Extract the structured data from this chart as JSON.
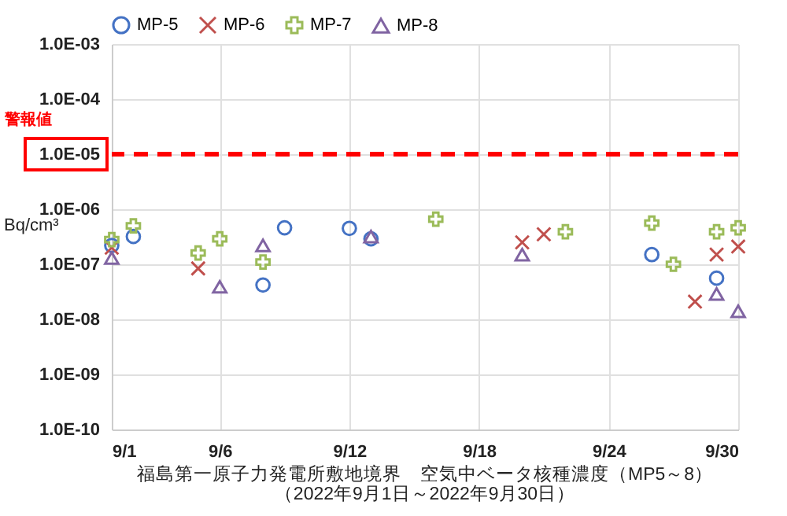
{
  "chart_data": {
    "type": "scatter",
    "title": "福島第一原子力発電所敷地境界　空気中ベータ核種濃度（MP5～8）",
    "subtitle": "（2022年9月1日～2022年9月30日）",
    "ylabel": "Bq/cm³",
    "log": "y",
    "grid": true,
    "legend": "top",
    "xlim": [
      "2022-09-01",
      "2022-09-30"
    ],
    "xticks": [
      {
        "value": "2022-09-01",
        "label": "9/1"
      },
      {
        "value": "2022-09-06",
        "label": "9/6"
      },
      {
        "value": "2022-09-12",
        "label": "9/12"
      },
      {
        "value": "2022-09-18",
        "label": "9/18"
      },
      {
        "value": "2022-09-24",
        "label": "9/24"
      },
      {
        "value": "2022-09-30",
        "label": "9/30"
      }
    ],
    "ylim": [
      1e-10,
      0.001
    ],
    "yticks": [
      {
        "value": 1e-10,
        "label": "1.0E-10"
      },
      {
        "value": 1e-09,
        "label": "1.0E-09"
      },
      {
        "value": 1e-08,
        "label": "1.0E-08"
      },
      {
        "value": 1e-07,
        "label": "1.0E-07"
      },
      {
        "value": 1e-06,
        "label": "1.0E-06"
      },
      {
        "value": 1e-05,
        "label": "1.0E-05"
      },
      {
        "value": 0.0001,
        "label": "1.0E-04"
      },
      {
        "value": 0.001,
        "label": "1.0E-03"
      }
    ],
    "ref_lines": [
      {
        "axis": "y",
        "value": 1e-05,
        "label": "警報値",
        "color": "#ff0000",
        "line_style": "dashed"
      }
    ],
    "series": [
      {
        "name": "MP-5",
        "color": "#4472c4",
        "marker": "circle",
        "x": [
          "2022-09-01",
          "2022-09-02",
          "2022-09-08",
          "2022-09-09",
          "2022-09-12",
          "2022-09-13",
          "2022-09-26",
          "2022-09-29"
        ],
        "values": [
          2.2e-07,
          3.2e-07,
          4.2e-08,
          4.6e-07,
          4.5e-07,
          2.9e-07,
          1.5e-07,
          5.6e-08
        ]
      },
      {
        "name": "MP-6",
        "color": "#c0504d",
        "marker": "cross",
        "x": [
          "2022-09-01",
          "2022-09-05",
          "2022-09-20",
          "2022-09-21",
          "2022-09-28",
          "2022-09-29",
          "2022-09-30"
        ],
        "values": [
          2e-07,
          8.4e-08,
          2.5e-07,
          3.5e-07,
          2.1e-08,
          1.5e-07,
          2.1e-07
        ]
      },
      {
        "name": "MP-7",
        "color": "#9bbb59",
        "marker": "plus",
        "x": [
          "2022-09-01",
          "2022-09-02",
          "2022-09-05",
          "2022-09-06",
          "2022-09-08",
          "2022-09-16",
          "2022-09-22",
          "2022-09-26",
          "2022-09-27",
          "2022-09-29",
          "2022-09-30"
        ],
        "values": [
          2.8e-07,
          5e-07,
          1.6e-07,
          2.9e-07,
          1.1e-07,
          6.6e-07,
          3.9e-07,
          5.6e-07,
          1e-07,
          3.9e-07,
          4.6e-07
        ]
      },
      {
        "name": "MP-8",
        "color": "#8064a2",
        "marker": "triangle",
        "x": [
          "2022-09-01",
          "2022-09-06",
          "2022-09-08",
          "2022-09-13",
          "2022-09-20",
          "2022-09-29",
          "2022-09-30"
        ],
        "values": [
          1.3e-07,
          3.9e-08,
          2.2e-07,
          3.2e-07,
          1.5e-07,
          2.9e-08,
          1.4e-08
        ]
      }
    ]
  }
}
